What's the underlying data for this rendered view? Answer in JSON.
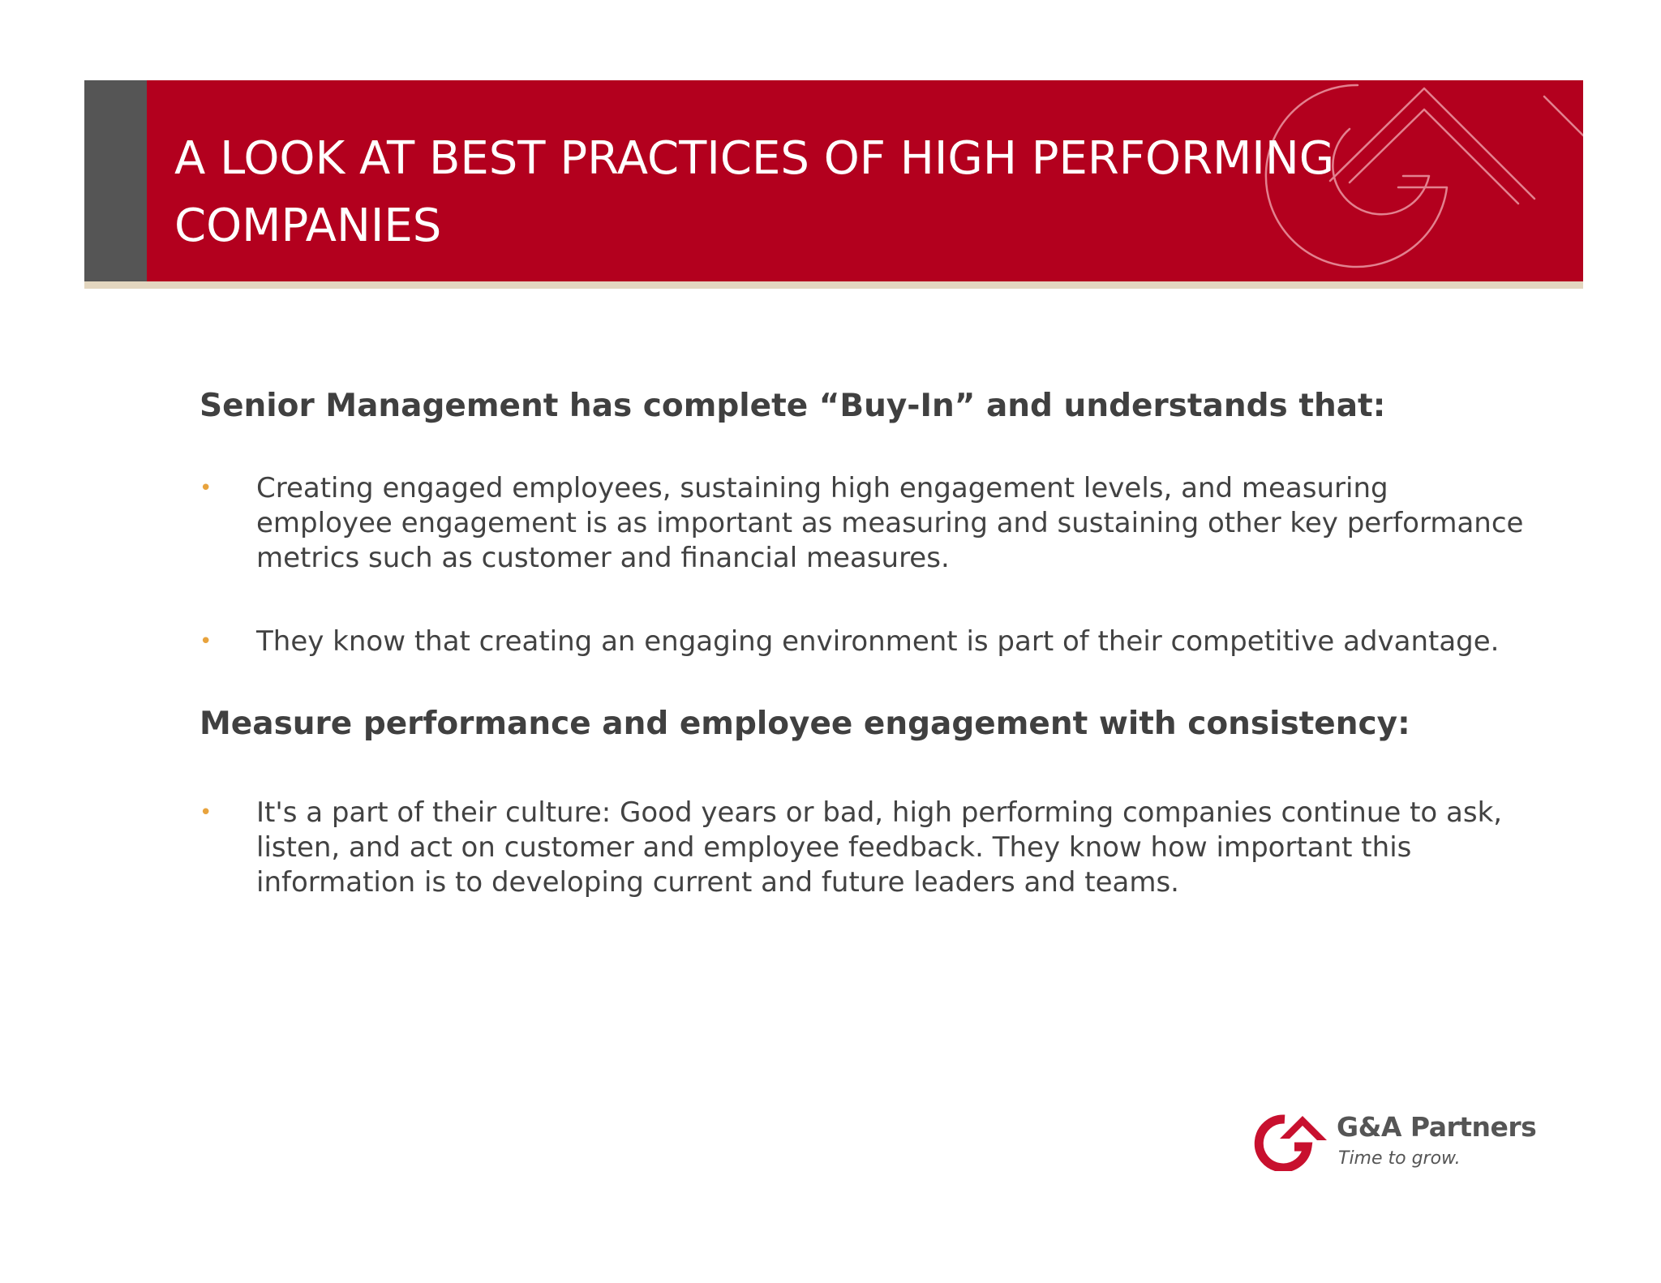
{
  "slide": {
    "title": "A LOOK AT BEST PRACTICES OF HIGH PERFORMING COMPANIES",
    "sections": [
      {
        "heading": "Senior Management has complete  “Buy-In” and understands that:",
        "bullets": [
          "Creating engaged employees, sustaining high engagement levels, and measuring employee engagement is as important as measuring and sustaining other key performance metrics such as customer and financial measures.",
          "They know that creating an engaging environment is part of their competitive advantage."
        ]
      },
      {
        "heading": "Measure performance and employee engagement with consistency:",
        "bullets": [
          "It's a part of their culture: Good years or bad, high performing companies continue to ask, listen, and act on customer and employee feedback. They know how important this information is to developing current and future leaders and teams."
        ]
      }
    ],
    "bullet_glyph": "•"
  },
  "logo": {
    "name": "G&A Partners",
    "tagline": "Time to grow."
  },
  "colors": {
    "banner": "#b3001e",
    "banner_accent": "#555555",
    "rule": "#e3d6bf",
    "bullet": "#e8a33d",
    "text": "#424242"
  },
  "icons": {
    "watermark": "ga-logo-watermark-icon",
    "logo_mark": "ga-logo-mark-icon"
  }
}
